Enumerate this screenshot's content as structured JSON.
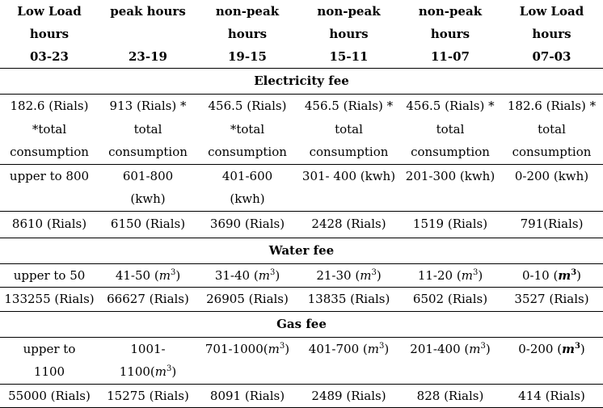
{
  "headers": [
    {
      "line1": "Low Load",
      "line2": "hours",
      "code": "03-23"
    },
    {
      "line1": "peak hours",
      "line2": "",
      "code": "23-19"
    },
    {
      "line1": "non-peak",
      "line2": "hours",
      "code": "19-15"
    },
    {
      "line1": "non-peak",
      "line2": "hours",
      "code": "15-11"
    },
    {
      "line1": "non-peak",
      "line2": "hours",
      "code": "11-07"
    },
    {
      "line1": "Low Load",
      "line2": "hours",
      "code": "07-03"
    }
  ],
  "electricity": {
    "title": "Electricity fee",
    "rates": [
      "182.6 (Rials) *total consumption",
      "913 (Rials) * total consumption",
      "456.5 (Rials) *total consumption",
      "456.5 (Rials) * total consumption",
      "456.5 (Rials) * total consumption",
      "182.6 (Rials) * total consumption"
    ],
    "ranges": [
      "upper to 800",
      "601-800 (kwh)",
      "401-600 (kwh)",
      "301- 400 (kwh)",
      "201-300 (kwh)",
      "0-200 (kwh)"
    ],
    "costs": [
      "8610 (Rials)",
      "6150 (Rials)",
      "3690 (Rials)",
      "2428 (Rials)",
      "1519 (Rials)",
      "791(Rials)"
    ]
  },
  "water": {
    "title": "Water fee",
    "ranges": [
      {
        "pre": "upper to 50",
        "unit": "",
        "post": "",
        "bold": false
      },
      {
        "pre": "41-50 (",
        "unit": "m",
        "post": ")",
        "bold": false
      },
      {
        "pre": "31-40 (",
        "unit": "m",
        "post": ")",
        "bold": false
      },
      {
        "pre": "21-30 (",
        "unit": "m",
        "post": ")",
        "bold": false
      },
      {
        "pre": "11-20 (",
        "unit": "m",
        "post": ")",
        "bold": false
      },
      {
        "pre": "0-10 (",
        "unit": "m",
        "post": ")",
        "bold": true
      }
    ],
    "exponent": "3",
    "costs": [
      "133255 (Rials)",
      "66627 (Rials)",
      "26905 (Rials)",
      "13835 (Rials)",
      "6502 (Rials)",
      "3527 (Rials)"
    ]
  },
  "gas": {
    "title": "Gas fee",
    "ranges": [
      {
        "pre": "upper to 1100",
        "unit": "",
        "post": "",
        "bold": false
      },
      {
        "pre": "1001-1100(",
        "unit": "m",
        "post": ")",
        "bold": false
      },
      {
        "pre": "701-1000(",
        "unit": "m",
        "post": ")",
        "bold": false
      },
      {
        "pre": "401-700 (",
        "unit": "m",
        "post": ")",
        "bold": false
      },
      {
        "pre": "201-400 (",
        "unit": "m",
        "post": ")",
        "bold": false
      },
      {
        "pre": "0-200 (",
        "unit": "m",
        "post": ")",
        "bold": true
      }
    ],
    "exponent": "3",
    "costs": [
      "55000 (Rials)",
      "15275 (Rials)",
      "8091 (Rials)",
      "2489 (Rials)",
      "828 (Rials)",
      "414 (Rials)"
    ]
  }
}
